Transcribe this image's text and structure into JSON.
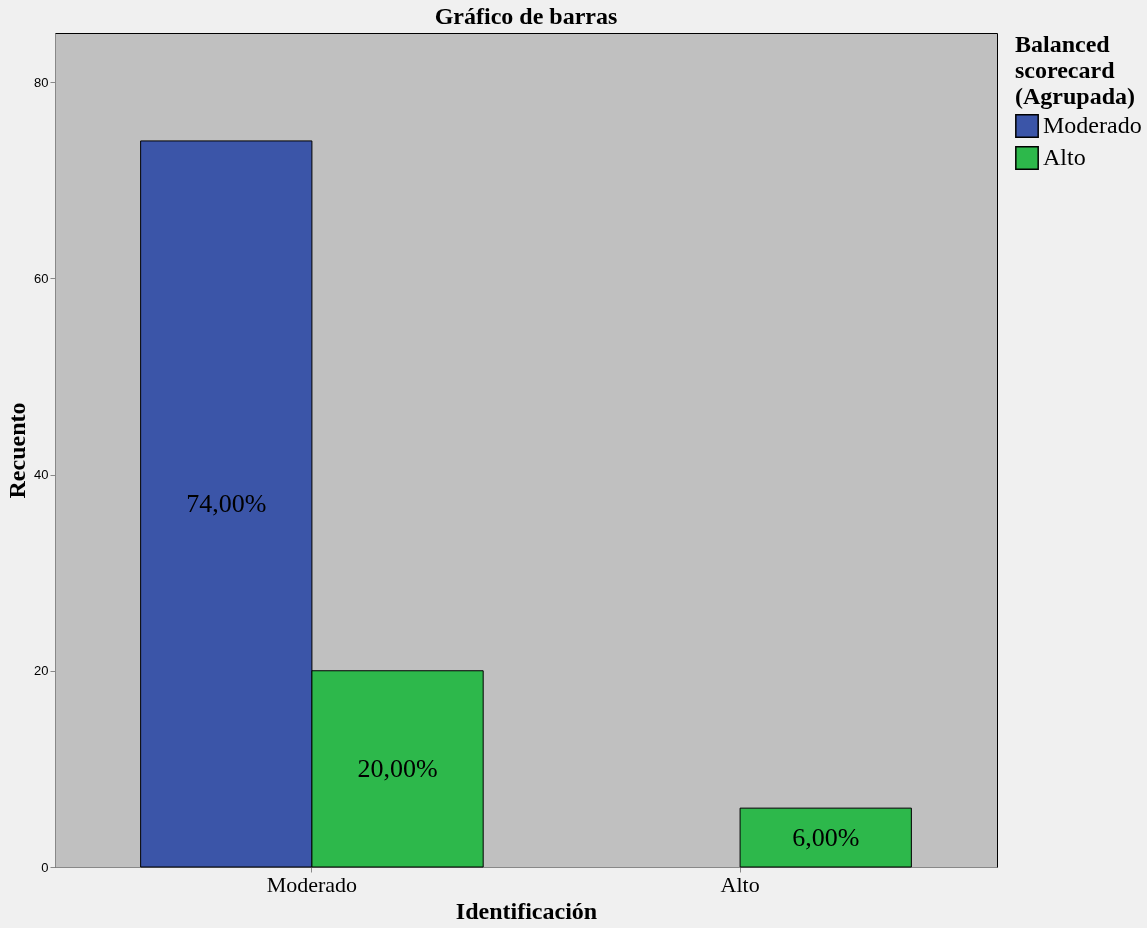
{
  "chart_data": {
    "type": "bar",
    "title": "Gráfico de barras",
    "xlabel": "Identificación",
    "ylabel": "Recuento",
    "legend_title": "Balanced scorecard (Agrupada)",
    "categories": [
      "Moderado",
      "Alto"
    ],
    "series": [
      {
        "name": "Moderado",
        "color": "#3b55a8",
        "values": [
          74,
          null
        ],
        "value_labels": [
          "74,00%",
          null
        ]
      },
      {
        "name": "Alto",
        "color": "#2db84b",
        "values": [
          20,
          6
        ],
        "value_labels": [
          "20,00%",
          "6,00%"
        ]
      }
    ],
    "ylim": [
      0,
      85
    ],
    "yticks": [
      0,
      20,
      40,
      60,
      80
    ],
    "grid": false,
    "legend": "top right"
  }
}
